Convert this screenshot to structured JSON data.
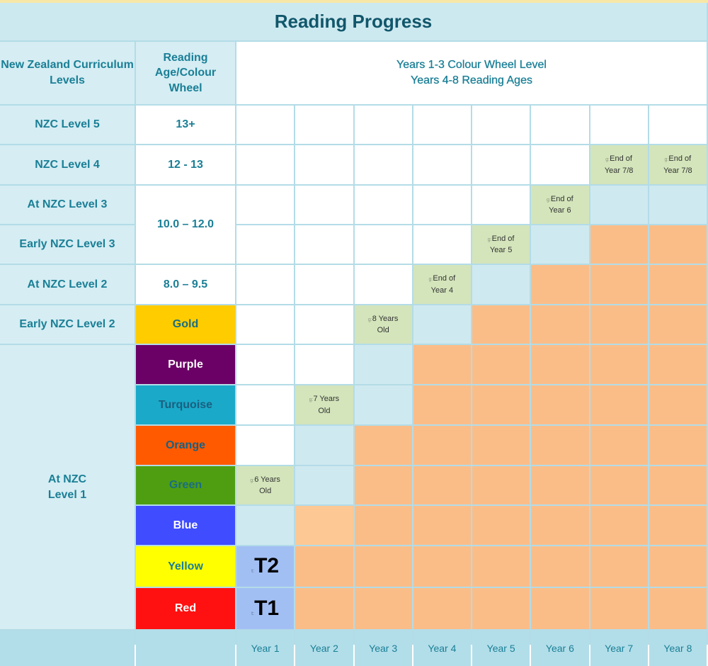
{
  "title": "Reading Progress",
  "headers": {
    "levels": "New Zealand Curriculum Levels",
    "reading_age": "Reading Age/Colour Wheel",
    "years_line1": "Years 1-3 Colour Wheel Level",
    "years_line2": "Years 4-8 Reading Ages"
  },
  "levels": [
    "NZC Level 5",
    "NZC Level 4",
    "At NZC Level 3",
    "Early NZC Level 3",
    "At NZC Level 2",
    "Early NZC Level 2",
    "At NZC Level 1"
  ],
  "reading_ages": [
    "13+",
    "12 - 13",
    "10.0 – 12.0",
    "8.0 – 9.5"
  ],
  "colour_wheel": [
    {
      "label": "Gold",
      "bg": "#ffcc00",
      "fg": "#1a6e80"
    },
    {
      "label": "Purple",
      "bg": "#6b0066",
      "fg": "#ffffff"
    },
    {
      "label": "Turquoise",
      "bg": "#1aa9c9",
      "fg": "#1a6080"
    },
    {
      "label": "Orange",
      "bg": "#ff5a00",
      "fg": "#1a6080"
    },
    {
      "label": "Green",
      "bg": "#4f9e12",
      "fg": "#1a6e80"
    },
    {
      "label": "Blue",
      "bg": "#3f4cff",
      "fg": "#ffffff"
    },
    {
      "label": "Yellow",
      "bg": "#ffff00",
      "fg": "#1a7f96"
    },
    {
      "label": "Red",
      "bg": "#ff1111",
      "fg": "#ffffff"
    }
  ],
  "cell_colors": {
    "w": "#ffffff",
    "b": "#cfe9f0",
    "g": "#d4e5bb",
    "o": "#fbbd88",
    "o2": "#fdc894",
    "t": "#a2bff4"
  },
  "grid": [
    [
      "w",
      "w",
      "w",
      "w",
      "w",
      "w",
      "w",
      "w"
    ],
    [
      "w",
      "w",
      "w",
      "w",
      "w",
      "w",
      "g:End of Year 7/8",
      "g:End of Year 7/8"
    ],
    [
      "w",
      "w",
      "w",
      "w",
      "w",
      "g:End of Year 6",
      "b",
      "b"
    ],
    [
      "w",
      "w",
      "w",
      "w",
      "g:End of Year 5",
      "b",
      "o",
      "o"
    ],
    [
      "w",
      "w",
      "w",
      "g:End of Year 4",
      "b",
      "o",
      "o",
      "o"
    ],
    [
      "w",
      "w",
      "g:8 Years Old",
      "b",
      "o",
      "o",
      "o",
      "o"
    ],
    [
      "w",
      "w",
      "b",
      "o",
      "o",
      "o",
      "o",
      "o"
    ],
    [
      "w",
      "g:7 Years Old",
      "b",
      "o",
      "o",
      "o",
      "o",
      "o"
    ],
    [
      "w",
      "b",
      "o",
      "o",
      "o",
      "o",
      "o",
      "o"
    ],
    [
      "g:6 Years Old",
      "b",
      "o",
      "o",
      "o",
      "o",
      "o",
      "o"
    ],
    [
      "b",
      "o2",
      "o",
      "o",
      "o",
      "o",
      "o",
      "o"
    ],
    [
      "t:T2",
      "o",
      "o",
      "o",
      "o",
      "o",
      "o",
      "o"
    ],
    [
      "t:T1",
      "o",
      "o",
      "o",
      "o",
      "o",
      "o",
      "o"
    ]
  ],
  "years": [
    "Year 1",
    "Year 2",
    "Year 3",
    "Year 4",
    "Year 5",
    "Year 6",
    "Year 7",
    "Year 8"
  ]
}
